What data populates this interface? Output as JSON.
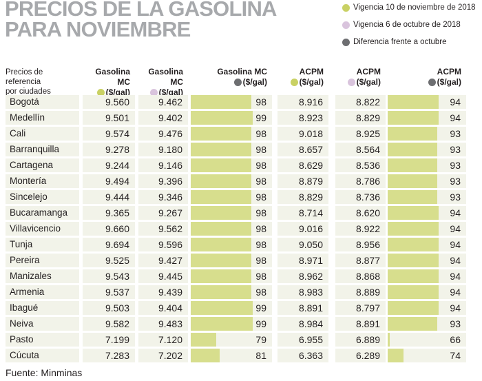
{
  "title": {
    "line1": "PRECIOS DE LA GASOLINA",
    "line2": "PARA NOVIEMBRE"
  },
  "legend": [
    {
      "label": "Vigencia 10 de noviembre de 2018",
      "color": "#c9d164"
    },
    {
      "label": "Vigencia 6 de octubre de 2018",
      "color": "#d9c4dd"
    },
    {
      "label": "Diferencia frente a octubre",
      "color": "#6d6e71"
    }
  ],
  "table": {
    "corner": {
      "line1": "Precios de referencia",
      "line2": "por ciudades"
    },
    "columns": [
      {
        "name": "Gasolina MC",
        "unit": "($/gal)",
        "dot": "#c9d164",
        "has_bar": false
      },
      {
        "name": "Gasolina MC",
        "unit": "($/gal)",
        "dot": "#d9c4dd",
        "has_bar": false
      },
      {
        "name": "Gasolina MC",
        "unit": "($/gal)",
        "dot": "#6d6e71",
        "has_bar": true
      },
      {
        "name": "ACPM",
        "unit": "($/gal)",
        "dot": "#c9d164",
        "has_bar": false
      },
      {
        "name": "ACPM",
        "unit": "($/gal)",
        "dot": "#d9c4dd",
        "has_bar": false
      },
      {
        "name": "ACPM",
        "unit": "($/gal)",
        "dot": "#6d6e71",
        "has_bar": true
      }
    ],
    "rows": [
      {
        "city": "Bogotá",
        "values": [
          "9.560",
          "9.462",
          98,
          "8.916",
          "8.822",
          94
        ]
      },
      {
        "city": "Medellín",
        "values": [
          "9.501",
          "9.402",
          99,
          "8.923",
          "8.829",
          94
        ]
      },
      {
        "city": "Cali",
        "values": [
          "9.574",
          "9.476",
          98,
          "9.018",
          "8.925",
          93
        ]
      },
      {
        "city": "Barranquilla",
        "values": [
          "9.278",
          "9.180",
          98,
          "8.657",
          "8.564",
          93
        ]
      },
      {
        "city": "Cartagena",
        "values": [
          "9.244",
          "9.146",
          98,
          "8.629",
          "8.536",
          93
        ]
      },
      {
        "city": "Montería",
        "values": [
          "9.494",
          "9.396",
          98,
          "8.879",
          "8.786",
          93
        ]
      },
      {
        "city": "Sincelejo",
        "values": [
          "9.444",
          "9.346",
          98,
          "8.829",
          "8.736",
          93
        ]
      },
      {
        "city": "Bucaramanga",
        "values": [
          "9.365",
          "9.267",
          98,
          "8.714",
          "8.620",
          94
        ]
      },
      {
        "city": "Villavicencio",
        "values": [
          "9.660",
          "9.562",
          98,
          "9.016",
          "8.922",
          94
        ]
      },
      {
        "city": "Tunja",
        "values": [
          "9.694",
          "9.596",
          98,
          "9.050",
          "8.956",
          94
        ]
      },
      {
        "city": "Pereira",
        "values": [
          "9.525",
          "9.427",
          98,
          "8.971",
          "8.877",
          94
        ]
      },
      {
        "city": "Manizales",
        "values": [
          "9.543",
          "9.445",
          98,
          "8.962",
          "8.868",
          94
        ]
      },
      {
        "city": "Armenia",
        "values": [
          "9.537",
          "9.439",
          98,
          "8.983",
          "8.889",
          94
        ]
      },
      {
        "city": "Ibagué",
        "values": [
          "9.503",
          "9.404",
          99,
          "8.891",
          "8.797",
          94
        ]
      },
      {
        "city": "Neiva",
        "values": [
          "9.582",
          "9.483",
          99,
          "8.984",
          "8.891",
          93
        ]
      },
      {
        "city": "Pasto",
        "values": [
          "7.199",
          "7.120",
          79,
          "6.955",
          "6.889",
          66
        ]
      },
      {
        "city": "Cúcuta",
        "values": [
          "7.283",
          "7.202",
          81,
          "6.363",
          "6.289",
          74
        ]
      }
    ]
  },
  "footer": {
    "source": "Fuente: Minminas"
  },
  "style": {
    "title_color": "#a7a9ac",
    "cell_background": "#f2f3e9",
    "bar_color": "#d7de8d",
    "green": "#c9d164",
    "purple": "#d9c4dd",
    "gray": "#6d6e71",
    "text": "#231f20"
  },
  "chart_data": {
    "type": "table",
    "title": "PRECIOS DE LA GASOLINA PARA NOVIEMBRE",
    "source": "Fuente: Minminas",
    "legend": [
      "Vigencia 10 de noviembre de 2018",
      "Vigencia 6 de octubre de 2018",
      "Diferencia frente a octubre"
    ],
    "legend_position": "top-right",
    "categories": [
      "Bogotá",
      "Medellín",
      "Cali",
      "Barranquilla",
      "Cartagena",
      "Montería",
      "Sincelejo",
      "Bucaramanga",
      "Villavicencio",
      "Tunja",
      "Pereira",
      "Manizales",
      "Armenia",
      "Ibagué",
      "Neiva",
      "Pasto",
      "Cúcuta"
    ],
    "series": [
      {
        "name": "Gasolina MC ($/gal) vigencia 10 de noviembre de 2018",
        "values": [
          9560,
          9501,
          9574,
          9278,
          9244,
          9494,
          9444,
          9365,
          9660,
          9694,
          9525,
          9543,
          9537,
          9503,
          9582,
          7199,
          7283
        ]
      },
      {
        "name": "Gasolina MC ($/gal) vigencia 6 de octubre de 2018",
        "values": [
          9462,
          9402,
          9476,
          9180,
          9146,
          9396,
          9346,
          9267,
          9562,
          9596,
          9427,
          9445,
          9439,
          9404,
          9483,
          7120,
          7202
        ]
      },
      {
        "name": "Gasolina MC ($/gal) diferencia frente a octubre (bar)",
        "values": [
          98,
          99,
          98,
          98,
          98,
          98,
          98,
          98,
          98,
          98,
          98,
          98,
          98,
          99,
          99,
          79,
          81
        ]
      },
      {
        "name": "ACPM ($/gal) vigencia 10 de noviembre de 2018",
        "values": [
          8916,
          8923,
          9018,
          8657,
          8629,
          8879,
          8829,
          8714,
          9016,
          9050,
          8971,
          8962,
          8983,
          8891,
          8984,
          6955,
          6363
        ]
      },
      {
        "name": "ACPM ($/gal) vigencia 6 de octubre de 2018",
        "values": [
          8822,
          8829,
          8925,
          8564,
          8536,
          8786,
          8736,
          8620,
          8922,
          8956,
          8877,
          8868,
          8889,
          8797,
          8891,
          6889,
          6289
        ]
      },
      {
        "name": "ACPM ($/gal) diferencia frente a octubre (bar)",
        "values": [
          94,
          94,
          93,
          93,
          93,
          93,
          93,
          94,
          94,
          94,
          94,
          94,
          94,
          94,
          93,
          66,
          74
        ]
      }
    ]
  }
}
